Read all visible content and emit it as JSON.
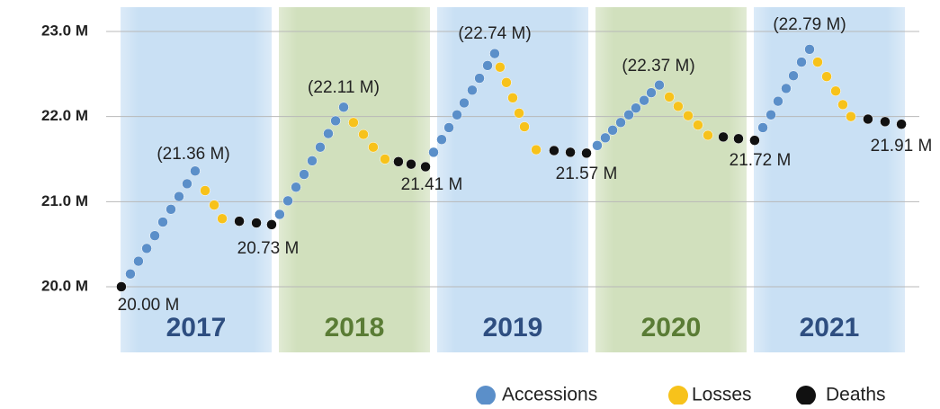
{
  "chart_data": {
    "type": "scatter",
    "categories": [
      "2017",
      "2018",
      "2019",
      "2020",
      "2021"
    ],
    "band_colors": [
      "#c9e0f4",
      "#d1e0bd",
      "#c9e0f4",
      "#d1e0bd",
      "#c9e0f4"
    ],
    "category_colors": [
      "#2e4e80",
      "#5a7c35",
      "#2e4e80",
      "#5a7c35",
      "#2e4e80"
    ],
    "xlim": [
      2017,
      2022
    ],
    "ylim": [
      19.2,
      23.3
    ],
    "yticks": [
      {
        "value": 20,
        "label": "20.0 M"
      },
      {
        "value": 21,
        "label": "21.0 M"
      },
      {
        "value": 22,
        "label": "22.0 M"
      },
      {
        "value": 23,
        "label": "23.0 M"
      }
    ],
    "grid": true,
    "legend": "bottom-right",
    "annotations": [
      "(21.36 M)",
      "20.73 M",
      "20.00 M",
      "(22.11 M)",
      "21.41 M",
      "(22.74 M)",
      "21.57 M",
      "(22.37 M)",
      "21.72 M",
      "(22.79 M)",
      "21.91 M"
    ],
    "series": [
      {
        "name": "Accessions",
        "color": "#5b8fc9",
        "x": [
          2017.085,
          2017.136,
          2017.188,
          2017.239,
          2017.29,
          2017.341,
          2017.392,
          2017.443,
          2017.494,
          2018.028,
          2018.08,
          2018.131,
          2018.182,
          2018.233,
          2018.284,
          2018.335,
          2018.381,
          2018.432,
          2019.0,
          2019.051,
          2019.097,
          2019.148,
          2019.193,
          2019.244,
          2019.29,
          2019.341,
          2019.386,
          2020.034,
          2020.085,
          2020.131,
          2020.182,
          2020.233,
          2020.278,
          2020.33,
          2020.375,
          2020.426,
          2021.08,
          2021.131,
          2021.176,
          2021.227,
          2021.273,
          2021.324,
          2021.375
        ],
        "values": [
          20.15,
          20.3,
          20.45,
          20.6,
          20.76,
          20.91,
          21.06,
          21.21,
          21.36,
          20.85,
          21.01,
          21.17,
          21.32,
          21.48,
          21.64,
          21.8,
          21.95,
          22.11,
          21.58,
          21.73,
          21.87,
          22.02,
          22.16,
          22.31,
          22.45,
          22.6,
          22.74,
          21.66,
          21.75,
          21.84,
          21.93,
          22.02,
          22.1,
          22.19,
          22.28,
          22.37,
          21.87,
          22.02,
          22.18,
          22.33,
          22.48,
          22.64,
          22.79
        ]
      },
      {
        "name": "Losses",
        "color": "#f7c21b",
        "x": [
          2017.557,
          2017.614,
          2017.665,
          2018.494,
          2018.557,
          2018.619,
          2018.693,
          2019.42,
          2019.46,
          2019.5,
          2019.54,
          2019.574,
          2019.648,
          2020.489,
          2020.545,
          2020.608,
          2020.67,
          2020.733,
          2021.426,
          2021.483,
          2021.54,
          2021.585,
          2021.636
        ],
        "values": [
          21.13,
          20.96,
          20.8,
          21.93,
          21.79,
          21.64,
          21.5,
          22.58,
          22.4,
          22.22,
          22.04,
          21.88,
          21.61,
          22.23,
          22.12,
          22.01,
          21.9,
          21.78,
          22.64,
          22.47,
          22.3,
          22.14,
          22.0
        ]
      },
      {
        "name": "Deaths",
        "color": "#111111",
        "x": [
          2017.028,
          2017.773,
          2017.881,
          2017.977,
          2018.778,
          2018.858,
          2018.949,
          2019.761,
          2019.864,
          2019.966,
          2020.83,
          2020.926,
          2021.028,
          2021.744,
          2021.852,
          2021.955
        ],
        "values": [
          20.0,
          20.77,
          20.75,
          20.73,
          21.47,
          21.44,
          21.41,
          21.6,
          21.58,
          21.57,
          21.76,
          21.74,
          21.72,
          21.97,
          21.94,
          21.91
        ]
      }
    ]
  }
}
